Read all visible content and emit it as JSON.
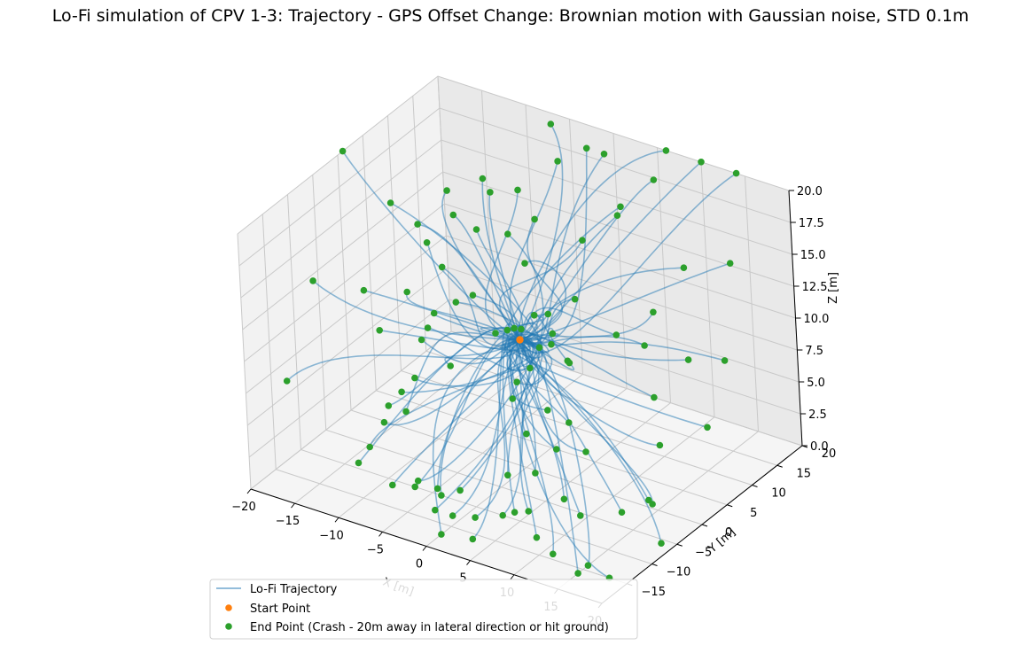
{
  "chart_data": {
    "type": "scatter",
    "projection": "3d",
    "title": "Lo-Fi simulation of CPV 1-3: Trajectory - GPS Offset Change: Brownian motion with Gaussian noise, STD 0.1m",
    "xlabel": "X [m]",
    "ylabel": "Y [m]",
    "zlabel": "Z [m]",
    "xlim": [
      -20,
      20
    ],
    "ylim": [
      -20,
      20
    ],
    "zlim": [
      0,
      20
    ],
    "xticks": [
      "−20",
      "−15",
      "−10",
      "−5",
      "0",
      "5",
      "10",
      "15",
      "20"
    ],
    "yticks": [
      "−15",
      "−10",
      "−5",
      "0",
      "5",
      "10",
      "15",
      "20"
    ],
    "zticks": [
      "0.0",
      "2.5",
      "5.0",
      "7.5",
      "10.0",
      "12.5",
      "15.0",
      "17.5",
      "20.0"
    ],
    "grid": true,
    "legend_position": "bottom-left",
    "colors": {
      "trajectory": "#1f77b4",
      "start": "#ff7f0e",
      "end": "#2ca02c"
    },
    "start_point": [
      0,
      0,
      10
    ],
    "series": [
      {
        "name": "Lo-Fi Trajectory",
        "kind": "line"
      },
      {
        "name": "Start Point",
        "kind": "scatter"
      },
      {
        "name": "End Point (Crash - 20m away in lateral direction or hit ground)",
        "kind": "scatter"
      }
    ],
    "end_points": [
      [
        -20,
        1,
        20
      ],
      [
        -19,
        8,
        14
      ],
      [
        -20,
        -6,
        12
      ],
      [
        -20,
        -12,
        6
      ],
      [
        -14,
        -9,
        0
      ],
      [
        -19,
        2,
        9
      ],
      [
        -10,
        -1,
        9
      ],
      [
        -12,
        3,
        14
      ],
      [
        -6,
        18,
        20
      ],
      [
        6,
        20,
        20
      ],
      [
        10,
        20,
        20
      ],
      [
        14,
        20,
        20
      ],
      [
        20,
        8,
        18
      ],
      [
        -3,
        14,
        19
      ],
      [
        -2,
        18,
        19
      ],
      [
        0,
        18,
        19
      ],
      [
        -8,
        9,
        17
      ],
      [
        -6,
        11,
        17
      ],
      [
        -10,
        5,
        16
      ],
      [
        -8,
        6,
        15
      ],
      [
        -5,
        7,
        15
      ],
      [
        -2,
        5,
        14
      ],
      [
        -3,
        9,
        16
      ],
      [
        3,
        8,
        16
      ],
      [
        6,
        10,
        18
      ],
      [
        14,
        9,
        16
      ],
      [
        8,
        14,
        20
      ],
      [
        10,
        2,
        12
      ],
      [
        20,
        6,
        11
      ],
      [
        20,
        2,
        7
      ],
      [
        14,
        2,
        8
      ],
      [
        18,
        -4,
        7
      ],
      [
        20,
        -10,
        5
      ],
      [
        18,
        -6,
        3
      ],
      [
        15,
        -7,
        2
      ],
      [
        12,
        -10,
        2
      ],
      [
        15,
        -16,
        0
      ],
      [
        20,
        -8,
        1
      ],
      [
        15,
        -14,
        0
      ],
      [
        18,
        -15,
        0
      ],
      [
        3,
        6,
        12
      ],
      [
        1,
        4,
        11
      ],
      [
        3,
        1,
        10
      ],
      [
        5,
        1,
        9
      ],
      [
        6,
        -1,
        10
      ],
      [
        0,
        3,
        11
      ],
      [
        -1,
        2,
        10
      ],
      [
        -3,
        4,
        9
      ],
      [
        -4,
        2,
        9
      ],
      [
        -7,
        3,
        11
      ],
      [
        -9,
        3,
        10
      ],
      [
        -11,
        2,
        9
      ],
      [
        -12,
        1,
        7
      ],
      [
        -10,
        -4,
        6
      ],
      [
        -11,
        -5,
        5
      ],
      [
        -12,
        -6,
        4
      ],
      [
        -12,
        -7,
        3
      ],
      [
        -10,
        -6,
        4
      ],
      [
        -12,
        -10,
        2
      ],
      [
        -9,
        -11,
        0
      ],
      [
        -6,
        -11,
        1
      ],
      [
        -7,
        -10,
        0
      ],
      [
        -4,
        -10,
        0
      ],
      [
        -5,
        -9,
        0
      ],
      [
        -3,
        -8,
        0
      ],
      [
        -3,
        -13,
        0
      ],
      [
        -1,
        -13,
        0
      ],
      [
        1,
        -12,
        0
      ],
      [
        3,
        -10,
        0
      ],
      [
        5,
        -11,
        1
      ],
      [
        2,
        -7,
        2
      ],
      [
        4,
        -5,
        2
      ],
      [
        2,
        -3,
        4
      ],
      [
        0,
        -2,
        6
      ],
      [
        0,
        -1,
        7
      ],
      [
        1,
        0,
        8
      ],
      [
        4,
        -2,
        6
      ],
      [
        7,
        -3,
        6
      ],
      [
        10,
        -5,
        5
      ],
      [
        6,
        -4,
        4
      ],
      [
        9,
        -8,
        2
      ],
      [
        6,
        -10,
        1
      ],
      [
        8,
        -12,
        0
      ],
      [
        11,
        -14,
        0
      ],
      [
        3,
        -16,
        0
      ],
      [
        0,
        -17,
        0
      ],
      [
        12,
        6,
        13
      ],
      [
        12,
        4,
        11
      ],
      [
        17,
        4,
        11
      ],
      [
        1,
        2,
        9
      ],
      [
        2,
        3,
        10
      ],
      [
        -2,
        1,
        10
      ],
      [
        -14,
        2,
        10
      ],
      [
        -11,
        4,
        12
      ],
      [
        -7,
        -2,
        7
      ],
      [
        -15,
        -2,
        8
      ],
      [
        -16,
        8,
        13
      ],
      [
        -13,
        9,
        16
      ],
      [
        -10,
        11,
        17
      ],
      [
        4,
        14,
        17
      ]
    ],
    "trajectories_note_count": 100
  },
  "legend": {
    "items": [
      {
        "label": "Lo-Fi Trajectory"
      },
      {
        "label": "Start Point"
      },
      {
        "label": "End Point (Crash - 20m away in lateral direction or hit ground)"
      }
    ]
  }
}
